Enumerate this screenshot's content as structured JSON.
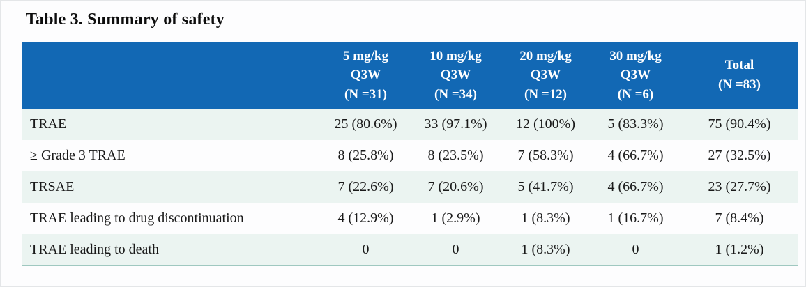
{
  "title": "Table 3. Summary of safety",
  "table": {
    "columns": [
      {
        "lines": [
          "5 mg/kg",
          "Q3W",
          "(N =31)"
        ]
      },
      {
        "lines": [
          "10 mg/kg",
          "Q3W",
          "(N =34)"
        ]
      },
      {
        "lines": [
          "20 mg/kg",
          "Q3W",
          "(N =12)"
        ]
      },
      {
        "lines": [
          "30 mg/kg",
          "Q3W",
          "(N =6)"
        ]
      },
      {
        "lines": [
          "Total",
          "(N =83)"
        ]
      }
    ],
    "rows": [
      {
        "label": "TRAE",
        "values": [
          "25 (80.6%)",
          "33 (97.1%)",
          "12 (100%)",
          "5 (83.3%)",
          "75 (90.4%)"
        ]
      },
      {
        "label": "≥ Grade 3 TRAE",
        "values": [
          "8 (25.8%)",
          "8 (23.5%)",
          "7 (58.3%)",
          "4 (66.7%)",
          "27 (32.5%)"
        ]
      },
      {
        "label": "TRSAE",
        "values": [
          "7 (22.6%)",
          "7 (20.6%)",
          "5 (41.7%)",
          "4 (66.7%)",
          "23 (27.7%)"
        ]
      },
      {
        "label": "TRAE leading to drug discontinuation",
        "values": [
          "4 (12.9%)",
          "1 (2.9%)",
          "1 (8.3%)",
          "1 (16.7%)",
          "7 (8.4%)"
        ]
      },
      {
        "label": "TRAE leading to death",
        "values": [
          "0",
          "0",
          "1 (8.3%)",
          "0",
          "1 (1.2%)"
        ]
      }
    ]
  },
  "colors": {
    "page_bg": "#FDFDFE",
    "title_text": "#0D0D0D",
    "header_bg": "#1268B4",
    "header_text": "#FFFFFF",
    "row_alt_bg": "#EBF4F1",
    "body_text": "#1A1A1A",
    "table_bottom_rule": "#9FC8C0"
  }
}
